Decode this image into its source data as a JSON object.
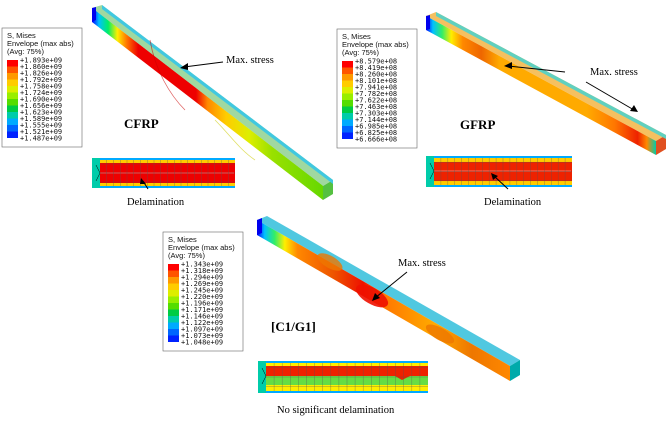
{
  "panels": [
    {
      "material": "CFRP",
      "legend": {
        "title_line1": "S, Mises",
        "title_line2": "Envelope (max abs)",
        "title_line3": "(Avg: 75%)",
        "values": [
          "+1.893e+09",
          "+1.860e+09",
          "+1.826e+09",
          "+1.792e+09",
          "+1.758e+09",
          "+1.724e+09",
          "+1.690e+09",
          "+1.656e+09",
          "+1.623e+09",
          "+1.589e+09",
          "+1.555e+09",
          "+1.521e+09",
          "+1.487e+09"
        ]
      },
      "max_stress_label": "Max. stress",
      "caption": "Delamination"
    },
    {
      "material": "GFRP",
      "legend": {
        "title_line1": "S, Mises",
        "title_line2": "Envelope (max abs)",
        "title_line3": "(Avg: 75%)",
        "values": [
          "+8.579e+08",
          "+8.419e+08",
          "+8.260e+08",
          "+8.101e+08",
          "+7.941e+08",
          "+7.782e+08",
          "+7.622e+08",
          "+7.463e+08",
          "+7.303e+08",
          "+7.144e+08",
          "+6.985e+08",
          "+6.825e+08",
          "+6.666e+08"
        ]
      },
      "max_stress_label": "Max. stress",
      "caption": "Delamination"
    },
    {
      "material": "[C1/G1]",
      "legend": {
        "title_line1": "S, Mises",
        "title_line2": "Envelope (max abs)",
        "title_line3": "(Avg: 75%)",
        "values": [
          "+1.343e+09",
          "+1.318e+09",
          "+1.294e+09",
          "+1.269e+09",
          "+1.245e+09",
          "+1.220e+09",
          "+1.196e+09",
          "+1.171e+09",
          "+1.146e+09",
          "+1.122e+09",
          "+1.097e+09",
          "+1.073e+09",
          "+1.048e+09"
        ]
      },
      "max_stress_label": "Max. stress",
      "caption": "No significant delamination"
    }
  ],
  "colormap": [
    "#ff0000",
    "#ff5500",
    "#ff9900",
    "#ffcc00",
    "#ddee00",
    "#99ee00",
    "#55dd00",
    "#00cc44",
    "#00ccaa",
    "#00aaff",
    "#0066ff",
    "#0022ff"
  ]
}
